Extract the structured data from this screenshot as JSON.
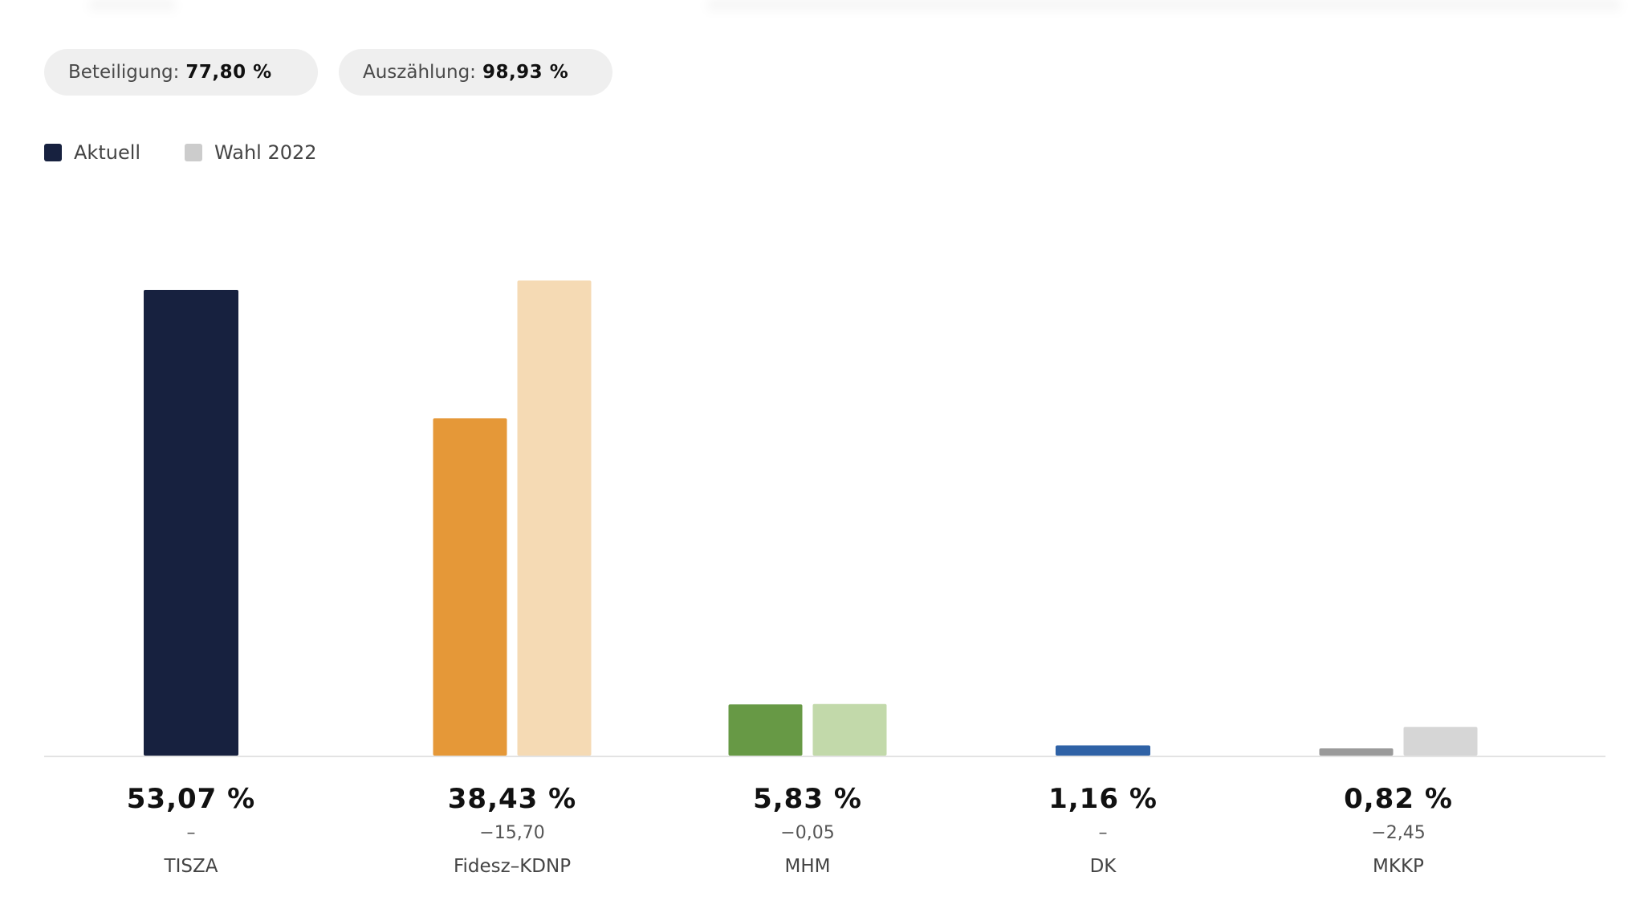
{
  "stats": {
    "participation_label": "Beteiligung:",
    "participation_value": "77,80 %",
    "counting_label": "Auszählung:",
    "counting_value": "98,93 %"
  },
  "legend": {
    "current": "Aktuell",
    "previous": "Wahl 2022"
  },
  "colors": {
    "legend_current": "#17213f",
    "legend_previous": "#cccccc",
    "pill_bg": "#efefef",
    "baseline": "#e3e3e3"
  },
  "chart_data": {
    "type": "bar",
    "unit": "%",
    "series": [
      {
        "name": "Aktuell",
        "values": [
          53.07,
          38.43,
          5.83,
          1.16,
          0.82
        ]
      },
      {
        "name": "Wahl 2022",
        "values": [
          null,
          54.13,
          5.88,
          null,
          3.27
        ]
      }
    ],
    "categories": [
      "TISZA",
      "Fidesz–KDNP",
      "MHM",
      "DK",
      "MKKP"
    ],
    "value_labels": [
      "53,07 %",
      "38,43 %",
      "5,83 %",
      "1,16 %",
      "0,82 %"
    ],
    "diff_labels": [
      "–",
      "−15,70",
      "−0,05",
      "–",
      "−2,45"
    ],
    "current_colors": [
      "#17213f",
      "#e59838",
      "#679945",
      "#2f62a6",
      "#9a9a9a"
    ],
    "previous_colors": [
      null,
      "#f5dab4",
      "#c2d9aa",
      null,
      "#d6d6d6"
    ],
    "ylim": [
      0,
      55
    ]
  }
}
